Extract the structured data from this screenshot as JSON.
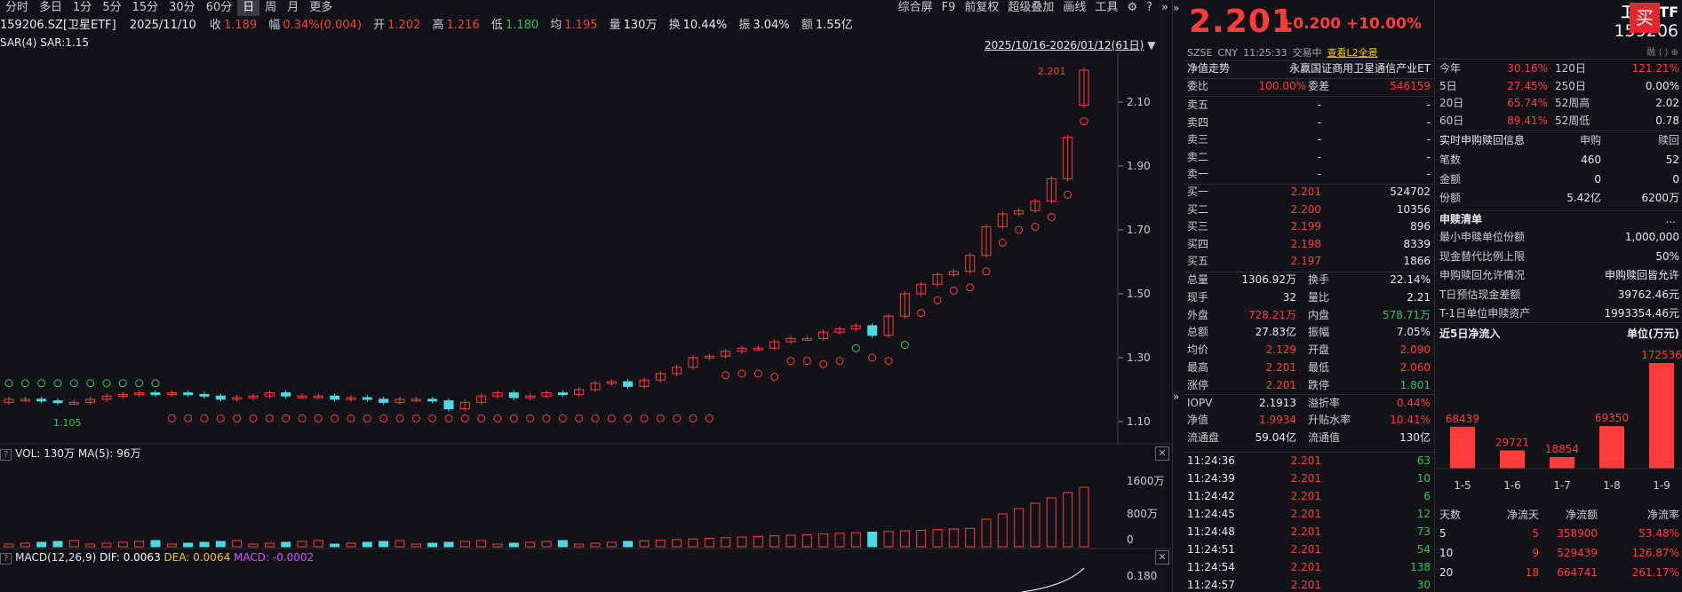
{
  "toolbar": {
    "tabs": [
      "分时",
      "多日",
      "1分",
      "5分",
      "15分",
      "30分",
      "60分",
      "日",
      "周",
      "月",
      "更多"
    ],
    "active": "日",
    "right": [
      "综合屏",
      "F9",
      "前复权",
      "超级叠加",
      "画线",
      "工具"
    ]
  },
  "info": {
    "code": "159206.SZ[卫星ETF]",
    "date": "2025/11/10",
    "close_l": "收",
    "close": "1.189",
    "amp_l": "幅",
    "amp": "0.34%(0.004)",
    "open_l": "开",
    "open": "1.202",
    "high_l": "高",
    "high": "1.216",
    "low_l": "低",
    "low": "1.180",
    "avg_l": "均",
    "avg": "1.195",
    "vol_l": "量",
    "vol": "130万",
    "turn_l": "换",
    "turn": "10.44%",
    "swing_l": "振",
    "swing": "3.04%",
    "amt_l": "额",
    "amt": "1.55亿"
  },
  "sar_label": "SAR(4)  SAR:1.15",
  "range": "2025/10/16-2026/01/12(61日)",
  "price_axis": [
    "2.10",
    "1.90",
    "1.70",
    "1.50",
    "1.30",
    "1.10"
  ],
  "annotations": {
    "high": "2.201",
    "low": "1.105"
  },
  "vol_panel": {
    "label": "VOL: 130万  MA(5): 96万",
    "axis": [
      "1600万",
      "800万",
      "0"
    ]
  },
  "macd_panel": {
    "label_a": "MACD(12,26,9)",
    "dif": "DIF: 0.0063",
    "dea": "DEA: 0.0064",
    "macd": "MACD: -0.0002",
    "axis": "0.180"
  },
  "quote": {
    "price": "2.201",
    "change": "+0.200",
    "pct": "+10.00%",
    "exchange": "SZSE",
    "currency": "CNY",
    "time": "11:25:33",
    "status": "交易中",
    "l2": "查看L2全景"
  },
  "nav": {
    "label": "净值走势",
    "index": "永赢国证商用卫星通信产业ET"
  },
  "order": {
    "wb_l": "委比",
    "wb": "100.00%",
    "wc_l": "委差",
    "wc": "546159"
  },
  "asks": [
    {
      "l": "卖五",
      "p": "-",
      "v": "-"
    },
    {
      "l": "卖四",
      "p": "-",
      "v": "-"
    },
    {
      "l": "卖三",
      "p": "-",
      "v": "-"
    },
    {
      "l": "卖二",
      "p": "-",
      "v": "-"
    },
    {
      "l": "卖一",
      "p": "-",
      "v": "-"
    }
  ],
  "bids": [
    {
      "l": "买一",
      "p": "2.201",
      "v": "524702"
    },
    {
      "l": "买二",
      "p": "2.200",
      "v": "10356"
    },
    {
      "l": "买三",
      "p": "2.199",
      "v": "896"
    },
    {
      "l": "买四",
      "p": "2.198",
      "v": "8339"
    },
    {
      "l": "买五",
      "p": "2.197",
      "v": "1866"
    }
  ],
  "detail": [
    {
      "a": "总量",
      "b": "1306.92万",
      "c": "换手",
      "d": "22.14%",
      "bc": "white",
      "dc": "white"
    },
    {
      "a": "现手",
      "b": "32",
      "c": "量比",
      "d": "2.21",
      "bc": "white",
      "dc": "white"
    },
    {
      "a": "外盘",
      "b": "728.21万",
      "c": "内盘",
      "d": "578.71万",
      "bc": "red",
      "dc": "green"
    },
    {
      "a": "总额",
      "b": "27.83亿",
      "c": "振幅",
      "d": "7.05%",
      "bc": "white",
      "dc": "white"
    },
    {
      "a": "均价",
      "b": "2.129",
      "c": "开盘",
      "d": "2.090",
      "bc": "red",
      "dc": "red"
    },
    {
      "a": "最高",
      "b": "2.201",
      "c": "最低",
      "d": "2.060",
      "bc": "red",
      "dc": "red"
    },
    {
      "a": "涨停",
      "b": "2.201",
      "c": "跌停",
      "d": "1.801",
      "bc": "red",
      "dc": "green"
    },
    {
      "a": "IOPV",
      "b": "2.1913",
      "c": "溢折率",
      "d": "0.44%",
      "bc": "white",
      "dc": "red"
    },
    {
      "a": "净值",
      "b": "1.9934",
      "c": "升贴水率",
      "d": "10.41%",
      "bc": "red",
      "dc": "red"
    },
    {
      "a": "流通盘",
      "b": "59.04亿",
      "c": "流通值",
      "d": "130亿",
      "bc": "white",
      "dc": "white"
    }
  ],
  "ticks": [
    {
      "t": "11:24:36",
      "p": "2.201",
      "v": "63"
    },
    {
      "t": "11:24:39",
      "p": "2.201",
      "v": "10"
    },
    {
      "t": "11:24:42",
      "p": "2.201",
      "v": "6"
    },
    {
      "t": "11:24:45",
      "p": "2.201",
      "v": "12"
    },
    {
      "t": "11:24:48",
      "p": "2.201",
      "v": "73"
    },
    {
      "t": "11:24:51",
      "p": "2.201",
      "v": "54"
    },
    {
      "t": "11:24:54",
      "p": "2.201",
      "v": "138"
    },
    {
      "t": "11:24:57",
      "p": "2.201",
      "v": "30"
    }
  ],
  "etf": {
    "name": "卫星ETF",
    "code": "159206",
    "buy": "买"
  },
  "perf": [
    {
      "a": "今年",
      "b": "30.16%",
      "c": "120日",
      "d": "121.21%",
      "bc": "red",
      "dc": "red"
    },
    {
      "a": "5日",
      "b": "27.45%",
      "c": "250日",
      "d": "0.00%",
      "bc": "red",
      "dc": "white"
    },
    {
      "a": "20日",
      "b": "65.74%",
      "c": "52周高",
      "d": "2.02",
      "bc": "red",
      "dc": "white"
    },
    {
      "a": "60日",
      "b": "89.41%",
      "c": "52周低",
      "d": "0.78",
      "bc": "red",
      "dc": "white"
    }
  ],
  "subred": {
    "title": "实时申购赎回信息",
    "col1": "申购",
    "col2": "赎回",
    "rows": [
      {
        "a": "笔数",
        "b": "460",
        "c": "52"
      },
      {
        "a": "金额",
        "b": "0",
        "c": "0"
      },
      {
        "a": "份额",
        "b": "5.42亿",
        "c": "6200万"
      }
    ]
  },
  "list": {
    "title": "申赎清单",
    "more": "...",
    "rows": [
      {
        "a": "最小申赎单位份额",
        "b": "1,000,000"
      },
      {
        "a": "现金替代比例上限",
        "b": "50%"
      },
      {
        "a": "申购赎回允许情况",
        "b": "申购赎回皆允许"
      },
      {
        "a": "T日预估现金差额",
        "b": "39762.46元"
      },
      {
        "a": "T-1日单位申赎资产",
        "b": "1993354.46元"
      }
    ]
  },
  "flow": {
    "title": "近5日净流入",
    "unit": "单位(万元)"
  },
  "chart_data": [
    {
      "type": "bar",
      "title": "近5日净流入",
      "ylabel": "单位(万元)",
      "categories": [
        "1-5",
        "1-6",
        "1-7",
        "1-8",
        "1-9"
      ],
      "values": [
        68439,
        29721,
        18854,
        69350,
        172536
      ]
    },
    {
      "type": "table",
      "columns": [
        "天数",
        "净流天",
        "净流额",
        "净流率"
      ],
      "rows": [
        [
          "5",
          "5",
          "358900",
          "53.48%"
        ],
        [
          "10",
          "9",
          "529439",
          "126.87%"
        ],
        [
          "20",
          "18",
          "664741",
          "261.17%"
        ]
      ]
    }
  ],
  "colors": {
    "up": "#ff3b3b",
    "down": "#2fc35a",
    "bg": "#121318",
    "cyan": "#4dd9e0"
  }
}
